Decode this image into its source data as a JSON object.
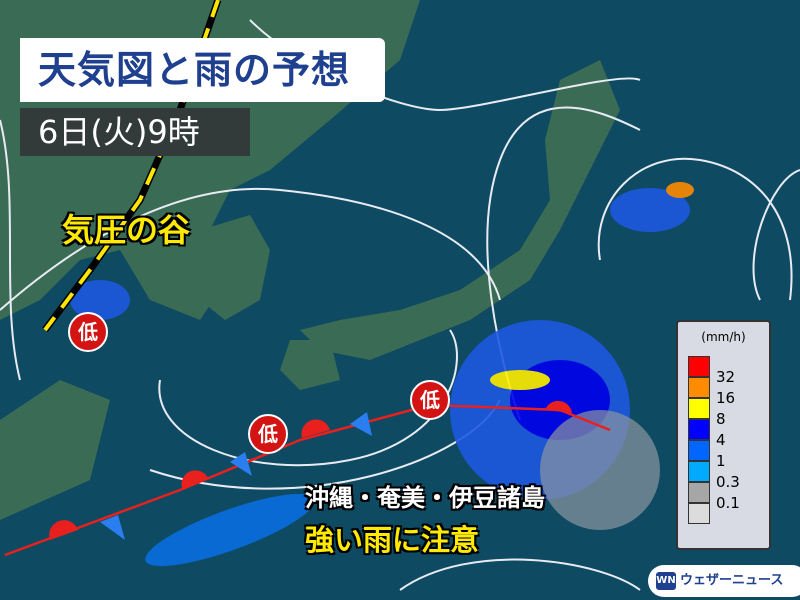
{
  "title": "天気図と雨の予想",
  "time": "6日(火)9時",
  "labels": {
    "trough": "気圧の谷",
    "area": "沖縄・奄美・伊豆諸島",
    "warning": "強い雨に注意",
    "low": "低"
  },
  "legend": {
    "unit": "(mm/h)",
    "levels": [
      {
        "label": "32",
        "color": "#ff0000"
      },
      {
        "label": "16",
        "color": "#ff8c00"
      },
      {
        "label": "8",
        "color": "#ffff00"
      },
      {
        "label": "4",
        "color": "#0000ff"
      },
      {
        "label": "1",
        "color": "#0066ff"
      },
      {
        "label": "0.3",
        "color": "#00aaff"
      },
      {
        "label": "0.1",
        "color": "#a6a6a6"
      },
      {
        "label": "",
        "color": "#dcdcdc"
      }
    ]
  },
  "logo": {
    "text": "ウェザーニュース",
    "mark": "WN"
  },
  "colors": {
    "sea": "#0f4a63",
    "land": "#3a6b55",
    "front": "#e8201e",
    "isobar": "#e8ecf2"
  }
}
